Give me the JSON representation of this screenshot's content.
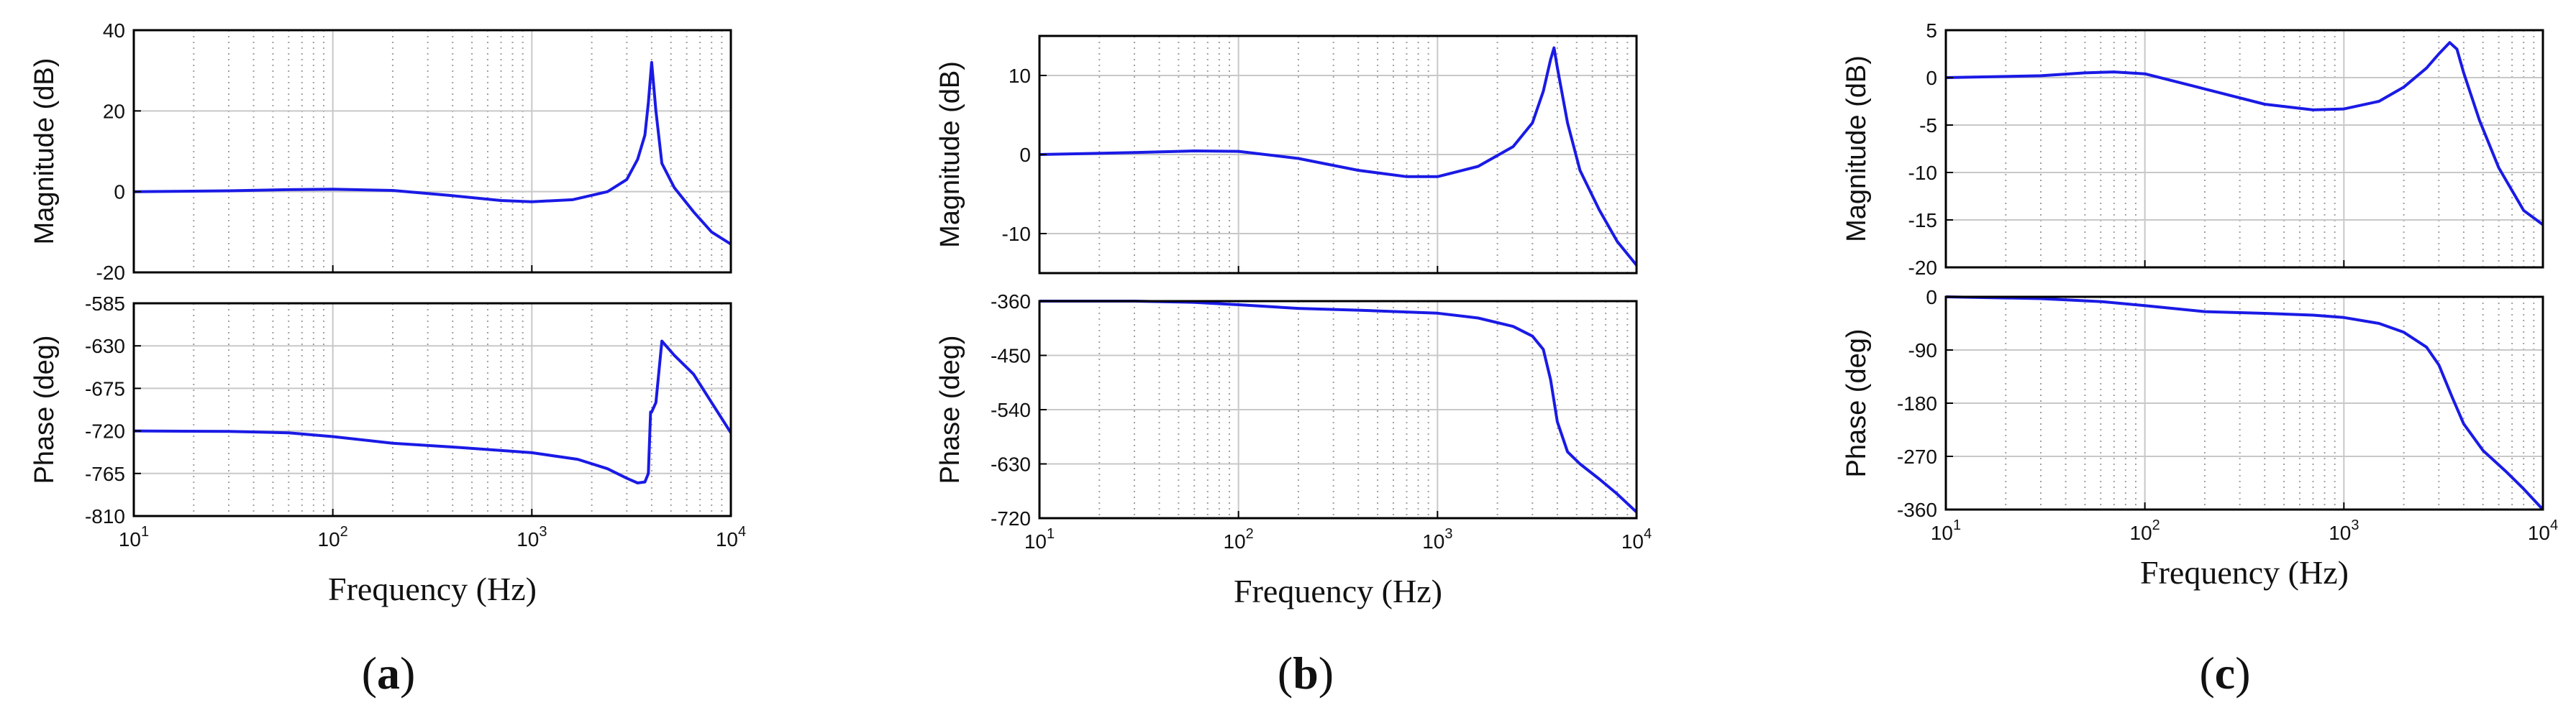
{
  "figure": {
    "panels": [
      {
        "id": "a",
        "label_open": "(",
        "label_letter": "a",
        "label_close": ")"
      },
      {
        "id": "b",
        "label_open": "(",
        "label_letter": "b",
        "label_close": ")"
      },
      {
        "id": "c",
        "label_open": "(",
        "label_letter": "c",
        "label_close": ")"
      }
    ]
  },
  "colors": {
    "line": "#1a1ae6",
    "grid_major": "#c8c8c8",
    "grid_minor": "#a0a0a0",
    "axis": "#000000"
  },
  "chart_data": [
    {
      "type": "line",
      "panel": "a",
      "title": "Magnitude",
      "xlabel": "",
      "ylabel": "Magnitude (dB)",
      "xscale": "log",
      "xlim": [
        10,
        10000
      ],
      "ylim": [
        -20,
        40
      ],
      "yticks": [
        -20,
        0,
        20,
        40
      ],
      "xticks": [
        10,
        100,
        1000,
        10000
      ],
      "x": [
        10,
        30,
        60,
        100,
        200,
        400,
        700,
        1000,
        1600,
        2400,
        3000,
        3400,
        3700,
        3850,
        4000,
        4200,
        4500,
        5200,
        6500,
        8000,
        10000
      ],
      "y": [
        0,
        0.2,
        0.5,
        0.6,
        0.3,
        -1.0,
        -2.2,
        -2.5,
        -2.0,
        0,
        3,
        8,
        14,
        22,
        32,
        20,
        7,
        1,
        -5,
        -10,
        -13
      ]
    },
    {
      "type": "line",
      "panel": "a",
      "title": "Phase",
      "xlabel": "Frequency (Hz)",
      "ylabel": "Phase (deg)",
      "xscale": "log",
      "xlim": [
        10,
        10000
      ],
      "ylim": [
        -810,
        -585
      ],
      "yticks": [
        -810,
        -765,
        -720,
        -675,
        -630,
        -585
      ],
      "xticks": [
        10,
        100,
        1000,
        10000
      ],
      "x": [
        10,
        30,
        60,
        100,
        200,
        400,
        1000,
        1700,
        2400,
        3000,
        3400,
        3700,
        3850,
        3950,
        4000,
        4200,
        4500,
        5200,
        6500,
        8000,
        10000
      ],
      "y": [
        -720,
        -720.5,
        -722,
        -726,
        -733,
        -737,
        -743,
        -750,
        -760,
        -770,
        -775,
        -774,
        -765,
        -700,
        -700,
        -690,
        -625,
        -640,
        -660,
        -690,
        -722
      ]
    },
    {
      "type": "line",
      "panel": "b",
      "title": "Magnitude",
      "xlabel": "",
      "ylabel": "Magnitude (dB)",
      "xscale": "log",
      "xlim": [
        10,
        10000
      ],
      "ylim": [
        -15,
        15
      ],
      "yticks": [
        -10,
        0,
        10
      ],
      "xticks": [
        10,
        100,
        1000,
        10000
      ],
      "x": [
        10,
        30,
        60,
        100,
        200,
        400,
        700,
        1000,
        1600,
        2400,
        3000,
        3400,
        3700,
        3850,
        4000,
        4500,
        5200,
        6500,
        8000,
        10000
      ],
      "y": [
        0,
        0.25,
        0.45,
        0.4,
        -0.5,
        -2.0,
        -2.8,
        -2.8,
        -1.5,
        1,
        4,
        8,
        12,
        13.5,
        11,
        4,
        -2,
        -7,
        -11,
        -14
      ]
    },
    {
      "type": "line",
      "panel": "b",
      "title": "Phase",
      "xlabel": "Frequency (Hz)",
      "ylabel": "Phase (deg)",
      "xscale": "log",
      "xlim": [
        10,
        10000
      ],
      "ylim": [
        -720,
        -360
      ],
      "yticks": [
        -720,
        -630,
        -540,
        -450,
        -360
      ],
      "xticks": [
        10,
        100,
        1000,
        10000
      ],
      "x": [
        10,
        30,
        60,
        100,
        200,
        400,
        1000,
        1600,
        2400,
        3000,
        3400,
        3700,
        4000,
        4500,
        5200,
        6500,
        8000,
        10000
      ],
      "y": [
        -360,
        -360,
        -362,
        -366,
        -372,
        -375,
        -380,
        -388,
        -402,
        -418,
        -440,
        -490,
        -560,
        -610,
        -630,
        -655,
        -680,
        -710
      ]
    },
    {
      "type": "line",
      "panel": "c",
      "title": "Magnitude",
      "xlabel": "",
      "ylabel": "Magnitude (dB)",
      "xscale": "log",
      "xlim": [
        10,
        10000
      ],
      "ylim": [
        -20,
        5
      ],
      "yticks": [
        -20,
        -15,
        -10,
        -5,
        0,
        5
      ],
      "xticks": [
        10,
        100,
        1000,
        10000
      ],
      "x": [
        10,
        30,
        50,
        70,
        100,
        200,
        400,
        700,
        1000,
        1500,
        2000,
        2600,
        3000,
        3400,
        3700,
        4000,
        4800,
        6000,
        8000,
        10000
      ],
      "y": [
        0,
        0.2,
        0.5,
        0.6,
        0.4,
        -1.2,
        -2.8,
        -3.4,
        -3.3,
        -2.5,
        -1.0,
        1.0,
        2.5,
        3.7,
        3.0,
        0.5,
        -4.5,
        -9.5,
        -14,
        -15.5
      ]
    },
    {
      "type": "line",
      "panel": "c",
      "title": "Phase",
      "xlabel": "Frequency (Hz)",
      "ylabel": "Phase (deg)",
      "xscale": "log",
      "xlim": [
        10,
        10000
      ],
      "ylim": [
        -360,
        0
      ],
      "yticks": [
        -360,
        -270,
        -180,
        -90,
        0
      ],
      "xticks": [
        10,
        100,
        1000,
        10000
      ],
      "x": [
        10,
        30,
        60,
        100,
        200,
        400,
        700,
        1000,
        1500,
        2000,
        2600,
        3000,
        3500,
        4000,
        5000,
        6500,
        8000,
        10000
      ],
      "y": [
        0,
        -3,
        -8,
        -15,
        -25,
        -28,
        -31,
        -35,
        -45,
        -60,
        -85,
        -115,
        -170,
        -215,
        -260,
        -295,
        -325,
        -360
      ]
    }
  ]
}
